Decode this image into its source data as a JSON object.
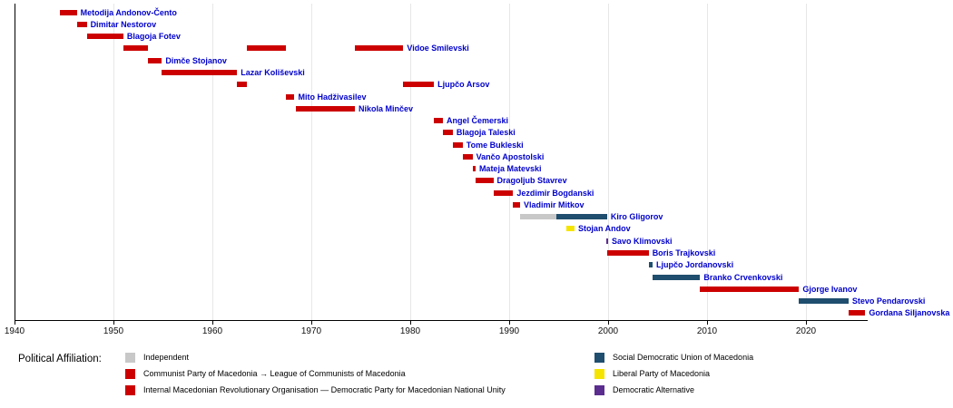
{
  "page": {
    "background": "#ffffff"
  },
  "legend": {
    "title": "Political Affiliation:",
    "columns": [
      [
        "independent",
        "kpm",
        "vmro_dpmne"
      ],
      [
        "sdsm",
        "lpm",
        "da"
      ]
    ]
  },
  "parties": {
    "independent": {
      "label": "Independent",
      "color": "#c8c8c8"
    },
    "kpm": {
      "label": "Communist Party of Macedonia → League of Communists of Macedonia",
      "color": "#cc0000"
    },
    "vmro_dpmne": {
      "label": "Internal Macedonian Revolutionary Organisation — Democratic Party for Macedonian National Unity",
      "color": "#cc0000"
    },
    "sdsm": {
      "label": "Social Democratic Union of Macedonia",
      "color": "#1f4e6e"
    },
    "lpm": {
      "label": "Liberal Party of Macedonia",
      "color": "#f5e400"
    },
    "da": {
      "label": "Democratic Alternative",
      "color": "#5b2d8e"
    }
  },
  "chart_data": {
    "type": "bar",
    "subtype": "timeline-gantt",
    "x_min": 1940,
    "x_max": 2026,
    "x_ticks": [
      1940,
      1950,
      1960,
      1970,
      1980,
      1990,
      2000,
      2010,
      2020
    ],
    "grid": true,
    "legend_position": "bottom",
    "label_color": "#0000cc",
    "people": [
      {
        "name": "Metodija Andonov-Čento",
        "terms": [
          {
            "start": 1944.6,
            "end": 1946.3,
            "party": "kpm"
          }
        ]
      },
      {
        "name": "Dimitar Nestorov",
        "terms": [
          {
            "start": 1946.3,
            "end": 1947.3,
            "party": "kpm"
          }
        ]
      },
      {
        "name": "Blagoja Fotev",
        "terms": [
          {
            "start": 1947.3,
            "end": 1951.0,
            "party": "kpm"
          }
        ]
      },
      {
        "name": "Vidoe Smilevski",
        "terms": [
          {
            "start": 1951.0,
            "end": 1953.5,
            "party": "kpm"
          },
          {
            "start": 1963.5,
            "end": 1967.4,
            "party": "kpm"
          },
          {
            "start": 1974.4,
            "end": 1979.3,
            "party": "kpm"
          }
        ]
      },
      {
        "name": "Dimče Stojanov",
        "terms": [
          {
            "start": 1953.5,
            "end": 1954.9,
            "party": "kpm"
          }
        ]
      },
      {
        "name": "Lazar Koliševski",
        "terms": [
          {
            "start": 1954.9,
            "end": 1962.5,
            "party": "kpm"
          }
        ]
      },
      {
        "name": "Ljupčo Arsov",
        "terms": [
          {
            "start": 1962.5,
            "end": 1963.5,
            "party": "kpm"
          },
          {
            "start": 1979.3,
            "end": 1982.4,
            "party": "kpm"
          }
        ]
      },
      {
        "name": "Mito Hadživasilev",
        "terms": [
          {
            "start": 1967.4,
            "end": 1968.3,
            "party": "kpm"
          }
        ]
      },
      {
        "name": "Nikola Minčev",
        "terms": [
          {
            "start": 1968.4,
            "end": 1974.4,
            "party": "kpm"
          }
        ]
      },
      {
        "name": "Angel Čemerski",
        "terms": [
          {
            "start": 1982.4,
            "end": 1983.3,
            "party": "kpm"
          }
        ]
      },
      {
        "name": "Blagoja Taleski",
        "terms": [
          {
            "start": 1983.3,
            "end": 1984.3,
            "party": "kpm"
          }
        ]
      },
      {
        "name": "Tome Bukleski",
        "terms": [
          {
            "start": 1984.3,
            "end": 1985.3,
            "party": "kpm"
          }
        ]
      },
      {
        "name": "Vančo Apostolski",
        "terms": [
          {
            "start": 1985.3,
            "end": 1986.3,
            "party": "kpm"
          }
        ]
      },
      {
        "name": "Mateja Matevski",
        "terms": [
          {
            "start": 1986.3,
            "end": 1986.6,
            "party": "kpm"
          }
        ]
      },
      {
        "name": "Dragoljub Stavrev",
        "terms": [
          {
            "start": 1986.6,
            "end": 1988.4,
            "party": "kpm"
          }
        ]
      },
      {
        "name": "Jezdimir Bogdanski",
        "terms": [
          {
            "start": 1988.4,
            "end": 1990.4,
            "party": "kpm"
          }
        ]
      },
      {
        "name": "Vladimir Mitkov",
        "terms": [
          {
            "start": 1990.4,
            "end": 1991.1,
            "party": "kpm"
          }
        ]
      },
      {
        "name": "Kiro Gligorov",
        "terms": [
          {
            "start": 1991.1,
            "end": 1994.8,
            "party": "independent"
          },
          {
            "start": 1994.8,
            "end": 1999.9,
            "party": "sdsm"
          }
        ]
      },
      {
        "name": "Stojan Andov",
        "terms": [
          {
            "start": 1995.8,
            "end": 1996.6,
            "party": "lpm"
          }
        ]
      },
      {
        "name": "Savo Klimovski",
        "terms": [
          {
            "start": 1999.8,
            "end": 2000.0,
            "party": "da"
          }
        ]
      },
      {
        "name": "Boris Trajkovski",
        "terms": [
          {
            "start": 1999.9,
            "end": 2004.1,
            "party": "vmro_dpmne"
          }
        ]
      },
      {
        "name": "Ljupčo Jordanovski",
        "terms": [
          {
            "start": 2004.1,
            "end": 2004.5,
            "party": "sdsm"
          }
        ]
      },
      {
        "name": "Branko Crvenkovski",
        "terms": [
          {
            "start": 2004.5,
            "end": 2009.3,
            "party": "sdsm"
          }
        ]
      },
      {
        "name": "Gjorge Ivanov",
        "terms": [
          {
            "start": 2009.3,
            "end": 2019.3,
            "party": "vmro_dpmne"
          }
        ]
      },
      {
        "name": "Stevo Pendarovski",
        "terms": [
          {
            "start": 2019.3,
            "end": 2024.3,
            "party": "sdsm"
          }
        ]
      },
      {
        "name": "Gordana Siljanovska",
        "terms": [
          {
            "start": 2024.3,
            "end": 2026.0,
            "party": "vmro_dpmne"
          }
        ]
      }
    ]
  }
}
